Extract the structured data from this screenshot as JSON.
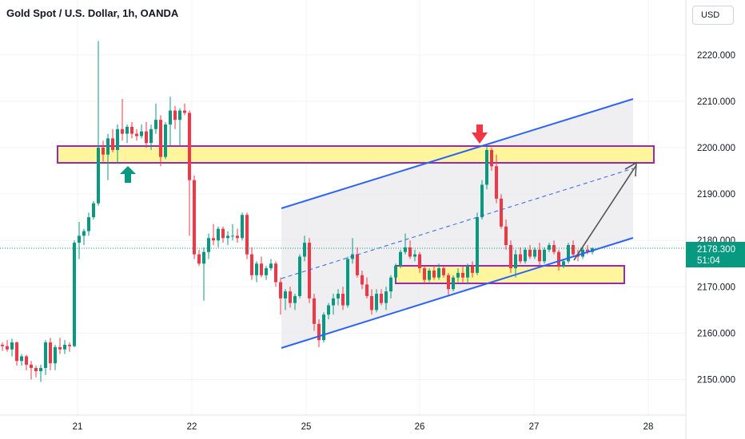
{
  "header": {
    "title": "Gold Spot / U.S. Dollar, 1h, OANDA",
    "currency_label": "USD"
  },
  "colors": {
    "up": "#089981",
    "down": "#f23645",
    "channel": "#2962ff",
    "zone_fill": "#fff59d",
    "zone_border": "#9c27b0",
    "arrow_up": "#089981",
    "arrow_down": "#f23645",
    "projection": "#555555",
    "price_line": "#089981"
  },
  "chart_data": {
    "type": "candlestick",
    "title": "Gold Spot / U.S. Dollar, 1h, OANDA",
    "y_ticks": [
      "2220.000",
      "2210.000",
      "2200.000",
      "2190.000",
      "2180.000",
      "2170.000",
      "2160.000",
      "2150.000"
    ],
    "x_ticks": [
      "21",
      "22",
      "25",
      "26",
      "27",
      "28"
    ],
    "ylim": [
      2146,
      2232
    ],
    "current_price": {
      "value": "2178.300",
      "countdown": "51:04"
    },
    "candles": [
      [
        2157.5,
        2158.0,
        2156.2,
        2157.2
      ],
      [
        2157.2,
        2158.5,
        2156.0,
        2156.5
      ],
      [
        2156.5,
        2158.8,
        2155.0,
        2158.0
      ],
      [
        2158.0,
        2158.2,
        2153.0,
        2154.0
      ],
      [
        2154.0,
        2155.5,
        2153.0,
        2155.0
      ],
      [
        2155.0,
        2155.3,
        2152.0,
        2153.2
      ],
      [
        2153.2,
        2154.0,
        2150.0,
        2152.5
      ],
      [
        2152.5,
        2153.0,
        2150.5,
        2151.8
      ],
      [
        2151.8,
        2153.2,
        2149.5,
        2152.5
      ],
      [
        2152.5,
        2158.5,
        2151.0,
        2158.0
      ],
      [
        2158.0,
        2159.0,
        2152.0,
        2153.5
      ],
      [
        2153.5,
        2157.5,
        2152.0,
        2157.0
      ],
      [
        2157.0,
        2159.0,
        2155.5,
        2156.5
      ],
      [
        2156.5,
        2158.5,
        2155.5,
        2157.5
      ],
      [
        2157.5,
        2158.0,
        2156.0,
        2157.2
      ],
      [
        2157.2,
        2180.0,
        2157.0,
        2179.5
      ],
      [
        2179.5,
        2184.0,
        2176.0,
        2181.0
      ],
      [
        2181.0,
        2182.5,
        2179.0,
        2182.0
      ],
      [
        2182.0,
        2186.0,
        2181.0,
        2185.0
      ],
      [
        2185.0,
        2188.5,
        2184.5,
        2188.0
      ],
      [
        2188.0,
        2223.0,
        2187.5,
        2200.0
      ],
      [
        2200.0,
        2201.5,
        2197.0,
        2198.5
      ],
      [
        2198.5,
        2203.0,
        2193.0,
        2202.0
      ],
      [
        2202.0,
        2204.0,
        2199.0,
        2199.5
      ],
      [
        2199.5,
        2205.0,
        2196.5,
        2204.0
      ],
      [
        2204.0,
        2210.5,
        2201.5,
        2203.0
      ],
      [
        2203.0,
        2205.0,
        2201.0,
        2204.5
      ],
      [
        2204.5,
        2205.5,
        2202.0,
        2203.0
      ],
      [
        2203.0,
        2204.0,
        2201.5,
        2202.5
      ],
      [
        2202.5,
        2205.0,
        2202.0,
        2203.5
      ],
      [
        2203.5,
        2205.5,
        2200.0,
        2201.0
      ],
      [
        2201.0,
        2205.0,
        2199.5,
        2204.0
      ],
      [
        2204.0,
        2209.5,
        2203.0,
        2206.0
      ],
      [
        2206.0,
        2207.0,
        2196.0,
        2198.0
      ],
      [
        2198.0,
        2205.5,
        2197.5,
        2205.0
      ],
      [
        2205.0,
        2211.0,
        2200.5,
        2208.0
      ],
      [
        2208.0,
        2209.0,
        2204.0,
        2206.0
      ],
      [
        2206.0,
        2208.5,
        2200.5,
        2208.0
      ],
      [
        2208.0,
        2209.5,
        2207.0,
        2207.5
      ],
      [
        2207.5,
        2208.0,
        2181.0,
        2193.0
      ],
      [
        2193.0,
        2194.0,
        2176.0,
        2177.0
      ],
      [
        2177.0,
        2178.0,
        2174.5,
        2175.0
      ],
      [
        2175.0,
        2178.5,
        2167.0,
        2177.5
      ],
      [
        2177.5,
        2181.5,
        2176.0,
        2180.5
      ],
      [
        2180.5,
        2183.5,
        2179.0,
        2180.0
      ],
      [
        2180.0,
        2183.0,
        2178.5,
        2182.5
      ],
      [
        2182.5,
        2183.0,
        2179.5,
        2180.5
      ],
      [
        2180.5,
        2182.0,
        2179.0,
        2181.0
      ],
      [
        2181.0,
        2183.5,
        2180.0,
        2181.0
      ],
      [
        2181.0,
        2182.5,
        2179.5,
        2180.5
      ],
      [
        2180.5,
        2186.0,
        2180.0,
        2185.5
      ],
      [
        2185.5,
        2186.0,
        2176.0,
        2177.0
      ],
      [
        2177.0,
        2178.5,
        2171.5,
        2172.5
      ],
      [
        2172.5,
        2175.5,
        2171.0,
        2175.0
      ],
      [
        2175.0,
        2176.5,
        2172.0,
        2172.5
      ],
      [
        2172.5,
        2174.5,
        2171.5,
        2174.0
      ],
      [
        2174.0,
        2176.0,
        2173.5,
        2175.0
      ],
      [
        2175.0,
        2175.5,
        2170.0,
        2171.0
      ],
      [
        2171.0,
        2172.0,
        2164.0,
        2167.5
      ],
      [
        2167.5,
        2169.5,
        2165.0,
        2169.0
      ],
      [
        2169.0,
        2170.0,
        2165.5,
        2166.5
      ],
      [
        2166.5,
        2168.5,
        2165.0,
        2168.0
      ],
      [
        2168.0,
        2177.0,
        2167.5,
        2176.5
      ],
      [
        2176.5,
        2181.0,
        2175.5,
        2179.5
      ],
      [
        2179.5,
        2180.5,
        2166.5,
        2167.5
      ],
      [
        2167.5,
        2168.5,
        2160.5,
        2162.0
      ],
      [
        2162.0,
        2163.0,
        2157.0,
        2158.5
      ],
      [
        2158.5,
        2164.5,
        2158.0,
        2164.0
      ],
      [
        2164.0,
        2166.5,
        2163.0,
        2166.0
      ],
      [
        2166.0,
        2168.5,
        2164.0,
        2167.5
      ],
      [
        2167.5,
        2169.5,
        2166.0,
        2168.5
      ],
      [
        2168.5,
        2170.0,
        2165.0,
        2166.0
      ],
      [
        2166.0,
        2176.5,
        2165.5,
        2176.0
      ],
      [
        2176.0,
        2180.5,
        2175.0,
        2177.0
      ],
      [
        2177.0,
        2178.5,
        2172.0,
        2172.5
      ],
      [
        2172.5,
        2173.5,
        2169.5,
        2170.5
      ],
      [
        2170.5,
        2172.0,
        2167.5,
        2168.0
      ],
      [
        2168.0,
        2169.5,
        2164.0,
        2165.0
      ],
      [
        2165.0,
        2169.5,
        2164.5,
        2168.5
      ],
      [
        2168.5,
        2169.5,
        2166.0,
        2166.5
      ],
      [
        2166.5,
        2170.0,
        2165.0,
        2169.0
      ],
      [
        2169.0,
        2172.5,
        2167.5,
        2172.0
      ],
      [
        2172.0,
        2175.0,
        2171.0,
        2174.5
      ],
      [
        2174.5,
        2178.0,
        2174.0,
        2177.5
      ],
      [
        2177.5,
        2181.5,
        2177.0,
        2178.5
      ],
      [
        2178.5,
        2180.0,
        2176.0,
        2176.5
      ],
      [
        2176.5,
        2178.0,
        2175.5,
        2177.0
      ],
      [
        2177.0,
        2177.5,
        2173.0,
        2174.0
      ],
      [
        2174.0,
        2174.5,
        2170.5,
        2171.5
      ],
      [
        2171.5,
        2174.0,
        2171.0,
        2173.5
      ],
      [
        2173.5,
        2174.5,
        2171.5,
        2172.0
      ],
      [
        2172.0,
        2175.0,
        2171.5,
        2174.0
      ],
      [
        2174.0,
        2174.5,
        2172.0,
        2172.5
      ],
      [
        2172.5,
        2173.0,
        2168.0,
        2169.5
      ],
      [
        2169.5,
        2172.5,
        2169.0,
        2172.0
      ],
      [
        2172.0,
        2174.0,
        2171.0,
        2173.0
      ],
      [
        2173.0,
        2174.5,
        2171.0,
        2172.0
      ],
      [
        2172.0,
        2175.0,
        2170.5,
        2174.5
      ],
      [
        2174.5,
        2175.5,
        2172.0,
        2173.0
      ],
      [
        2173.0,
        2186.0,
        2172.5,
        2185.0
      ],
      [
        2185.0,
        2193.0,
        2184.5,
        2192.0
      ],
      [
        2192.0,
        2200.5,
        2191.0,
        2199.5
      ],
      [
        2199.5,
        2200.0,
        2195.0,
        2196.0
      ],
      [
        2196.0,
        2198.5,
        2188.0,
        2189.0
      ],
      [
        2189.0,
        2190.0,
        2182.5,
        2183.0
      ],
      [
        2183.0,
        2184.5,
        2178.0,
        2179.0
      ],
      [
        2179.0,
        2180.0,
        2173.0,
        2174.0
      ],
      [
        2174.0,
        2178.0,
        2172.0,
        2177.0
      ],
      [
        2177.0,
        2178.5,
        2175.0,
        2175.5
      ],
      [
        2175.5,
        2178.5,
        2175.0,
        2178.0
      ],
      [
        2178.0,
        2179.0,
        2176.0,
        2176.5
      ],
      [
        2176.5,
        2178.5,
        2176.0,
        2178.0
      ],
      [
        2178.0,
        2179.5,
        2174.5,
        2175.5
      ],
      [
        2175.5,
        2178.5,
        2175.0,
        2178.0
      ],
      [
        2178.0,
        2179.5,
        2177.5,
        2179.0
      ],
      [
        2179.0,
        2180.0,
        2177.0,
        2177.5
      ],
      [
        2177.5,
        2178.0,
        2173.5,
        2174.5
      ],
      [
        2174.5,
        2176.0,
        2174.0,
        2175.5
      ],
      [
        2175.5,
        2179.5,
        2175.0,
        2179.0
      ],
      [
        2179.0,
        2180.0,
        2176.5,
        2177.0
      ],
      [
        2177.0,
        2178.0,
        2175.5,
        2176.5
      ],
      [
        2176.5,
        2178.5,
        2176.0,
        2178.0
      ],
      [
        2178.0,
        2179.0,
        2177.0,
        2177.5
      ],
      [
        2177.5,
        2178.5,
        2177.0,
        2178.3
      ]
    ]
  }
}
